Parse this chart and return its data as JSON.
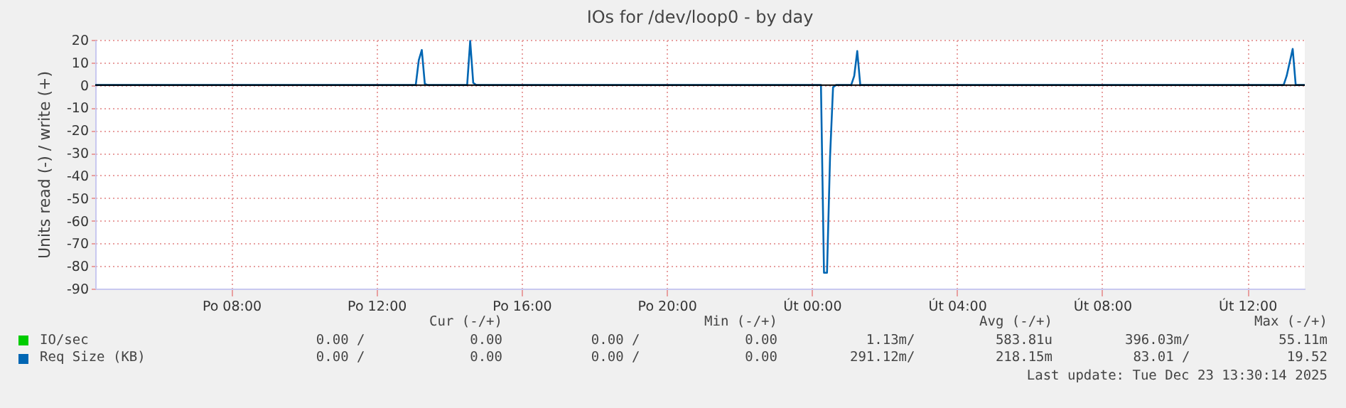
{
  "chart_data": {
    "type": "line",
    "title": "IOs for /dev/loop0 - by day",
    "ylabel": "Units read (-) / write (+)",
    "xlim": [
      "2025-12-22T04:15",
      "2025-12-23T13:35"
    ],
    "xticks": [
      {
        "value": "2025-12-22T08:00",
        "label": "Po 08:00"
      },
      {
        "value": "2025-12-22T12:00",
        "label": "Po 12:00"
      },
      {
        "value": "2025-12-22T16:00",
        "label": "Po 16:00"
      },
      {
        "value": "2025-12-22T20:00",
        "label": "Po 20:00"
      },
      {
        "value": "2025-12-23T00:00",
        "label": "Út 00:00"
      },
      {
        "value": "2025-12-23T04:00",
        "label": "Út 04:00"
      },
      {
        "value": "2025-12-23T08:00",
        "label": "Út 08:00"
      },
      {
        "value": "2025-12-23T12:00",
        "label": "Út 12:00"
      }
    ],
    "ylim": [
      -90,
      20
    ],
    "yticks": [
      -90,
      -80,
      -70,
      -60,
      -50,
      -40,
      -30,
      -20,
      -10,
      0,
      10,
      20
    ],
    "grid": true,
    "legend": "bottom",
    "line_style": "solid",
    "marker": "none",
    "ref_lines": [
      {
        "axis": "y",
        "value": 0,
        "color": "#000000"
      }
    ],
    "series": [
      {
        "name": "IO/sec",
        "color": "#00cc00"
      },
      {
        "name": "Req Size (KB)",
        "color": "#0066b3",
        "x": [
          "2025-12-22T04:15",
          "2025-12-22T13:05",
          "2025-12-22T13:10",
          "2025-12-22T13:15",
          "2025-12-22T13:20",
          "2025-12-22T13:25",
          "2025-12-22T14:30",
          "2025-12-22T14:35",
          "2025-12-22T14:40",
          "2025-12-22T14:45",
          "2025-12-23T00:15",
          "2025-12-23T00:20",
          "2025-12-23T00:25",
          "2025-12-23T00:30",
          "2025-12-23T00:35",
          "2025-12-23T00:40",
          "2025-12-23T01:05",
          "2025-12-23T01:10",
          "2025-12-23T01:15",
          "2025-12-23T01:20",
          "2025-12-23T13:00",
          "2025-12-23T13:05",
          "2025-12-23T13:15",
          "2025-12-23T13:20",
          "2025-12-23T13:35"
        ],
        "values": [
          0,
          0,
          11,
          15.5,
          0.5,
          0,
          0,
          19.5,
          1,
          0,
          0,
          -83,
          -83,
          -32,
          -1,
          0,
          0,
          4,
          15,
          0,
          0,
          4,
          16,
          0,
          0
        ]
      }
    ],
    "annotations": [
      "Cur (-/+)",
      "Min (-/+)",
      "Avg (-/+)",
      "Max (-/+)",
      "0.00 /",
      "0.00",
      "0.00 /",
      "0.00",
      "1.13m/",
      "583.81u",
      "396.03m/",
      "55.11m",
      "0.00 /",
      "0.00",
      "0.00 /",
      "0.00",
      "291.12m/",
      "218.15m",
      "83.01 /",
      "19.52",
      "Last update: Tue Dec 23 13:30:14 2025"
    ]
  }
}
